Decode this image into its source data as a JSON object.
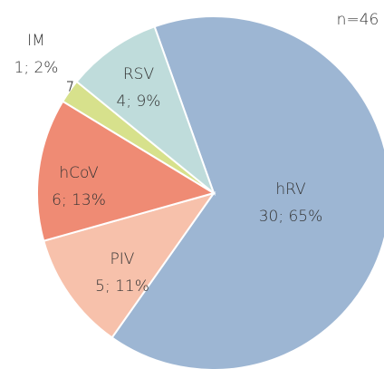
{
  "chart_data": {
    "type": "pie",
    "annotation": "n=46",
    "categories": [
      "hRV",
      "PIV",
      "hCoV",
      "IM",
      "RSV"
    ],
    "values": [
      30,
      5,
      6,
      1,
      4
    ],
    "value_labels": [
      "30; 65%",
      "5; 11%",
      "6; 13%",
      "1; 2%",
      "4; 9%"
    ],
    "colors": [
      "#9db6d3",
      "#f7c1ab",
      "#ef8b74",
      "#d7e18c",
      "#bfdcdb"
    ]
  }
}
